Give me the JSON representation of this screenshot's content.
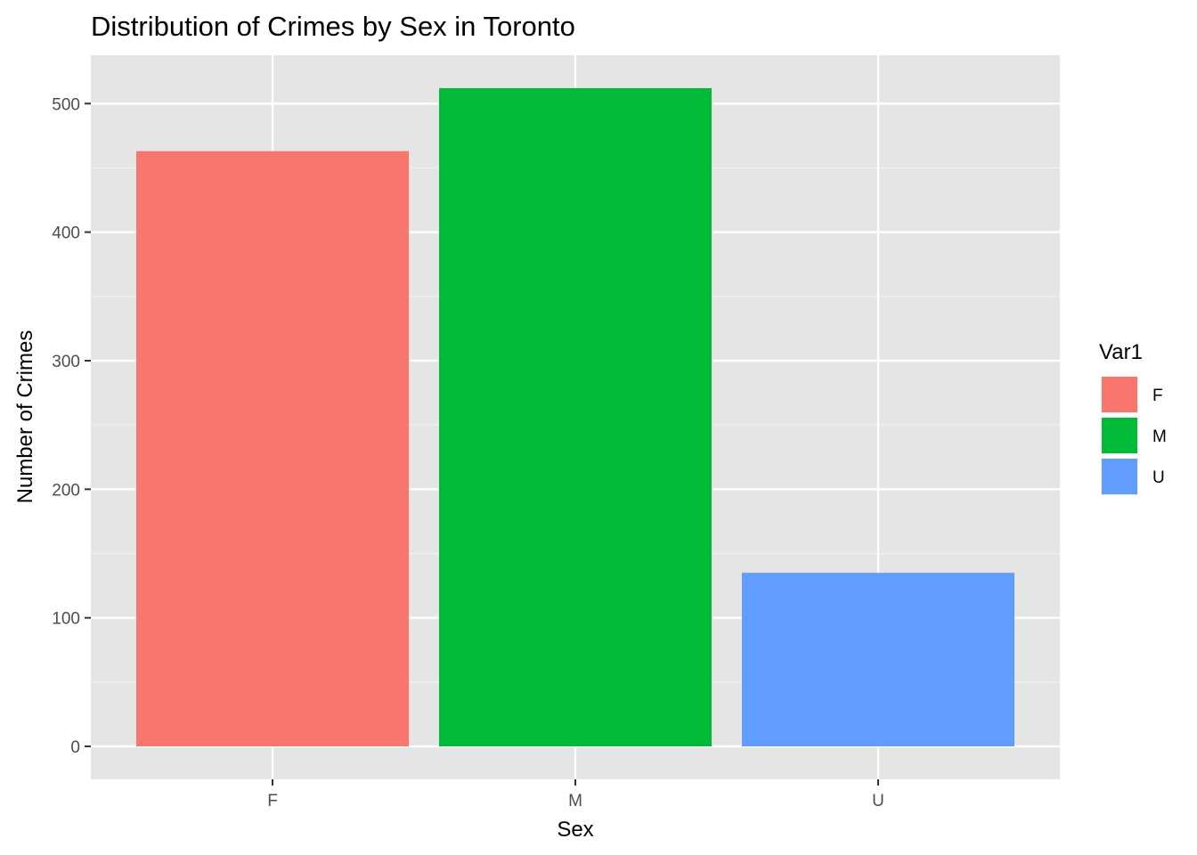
{
  "chart_data": {
    "type": "bar",
    "title": "Distribution of Crimes by Sex in Toronto",
    "xlabel": "Sex",
    "ylabel": "Number of Crimes",
    "categories": [
      "F",
      "M",
      "U"
    ],
    "values": [
      463,
      512,
      135
    ],
    "colors": [
      "#F8766D",
      "#00BA38",
      "#619CFF"
    ],
    "ylim": [
      -25.6,
      537.6
    ],
    "yticks": [
      0,
      100,
      200,
      300,
      400,
      500
    ],
    "grid": true,
    "panel_background": "#E5E5E5",
    "legend": {
      "title": "Var1",
      "placement": "right",
      "entries": [
        "F",
        "M",
        "U"
      ]
    }
  }
}
